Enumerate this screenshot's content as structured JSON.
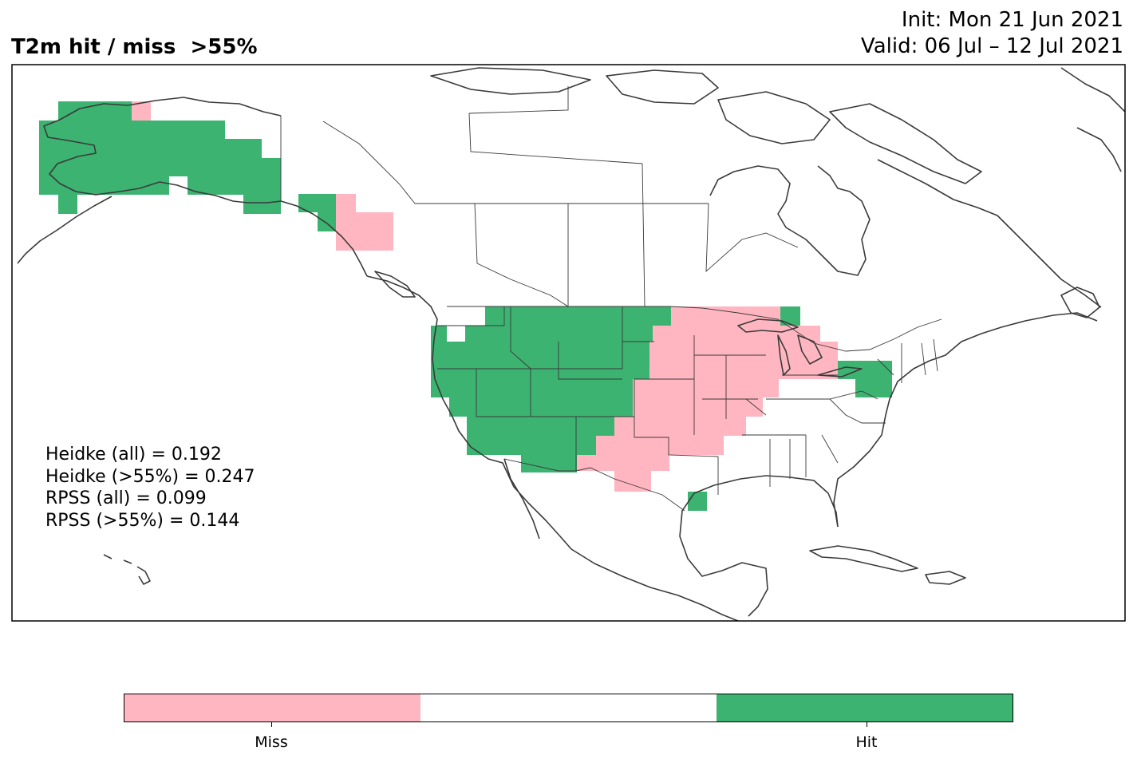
{
  "header": {
    "title": "T2m hit / miss  >55%",
    "init": "Init: Mon 21 Jun 2021",
    "valid": "Valid: 06 Jul – 12 Jul 2021"
  },
  "scores": [
    "Heidke (all) = 0.192",
    "Heidke (>55%) = 0.247",
    "RPSS (all) = 0.099",
    "RPSS (>55%) = 0.144"
  ],
  "legend": {
    "categories": [
      {
        "label": "Miss",
        "color": "#ffb6c1"
      },
      {
        "label": "",
        "color": "#ffffff"
      },
      {
        "label": "Hit",
        "color": "#3cb371"
      }
    ]
  },
  "colors": {
    "hit": "#3cb371",
    "miss": "#ffb6c1",
    "coast": "#3a3a3a"
  }
}
